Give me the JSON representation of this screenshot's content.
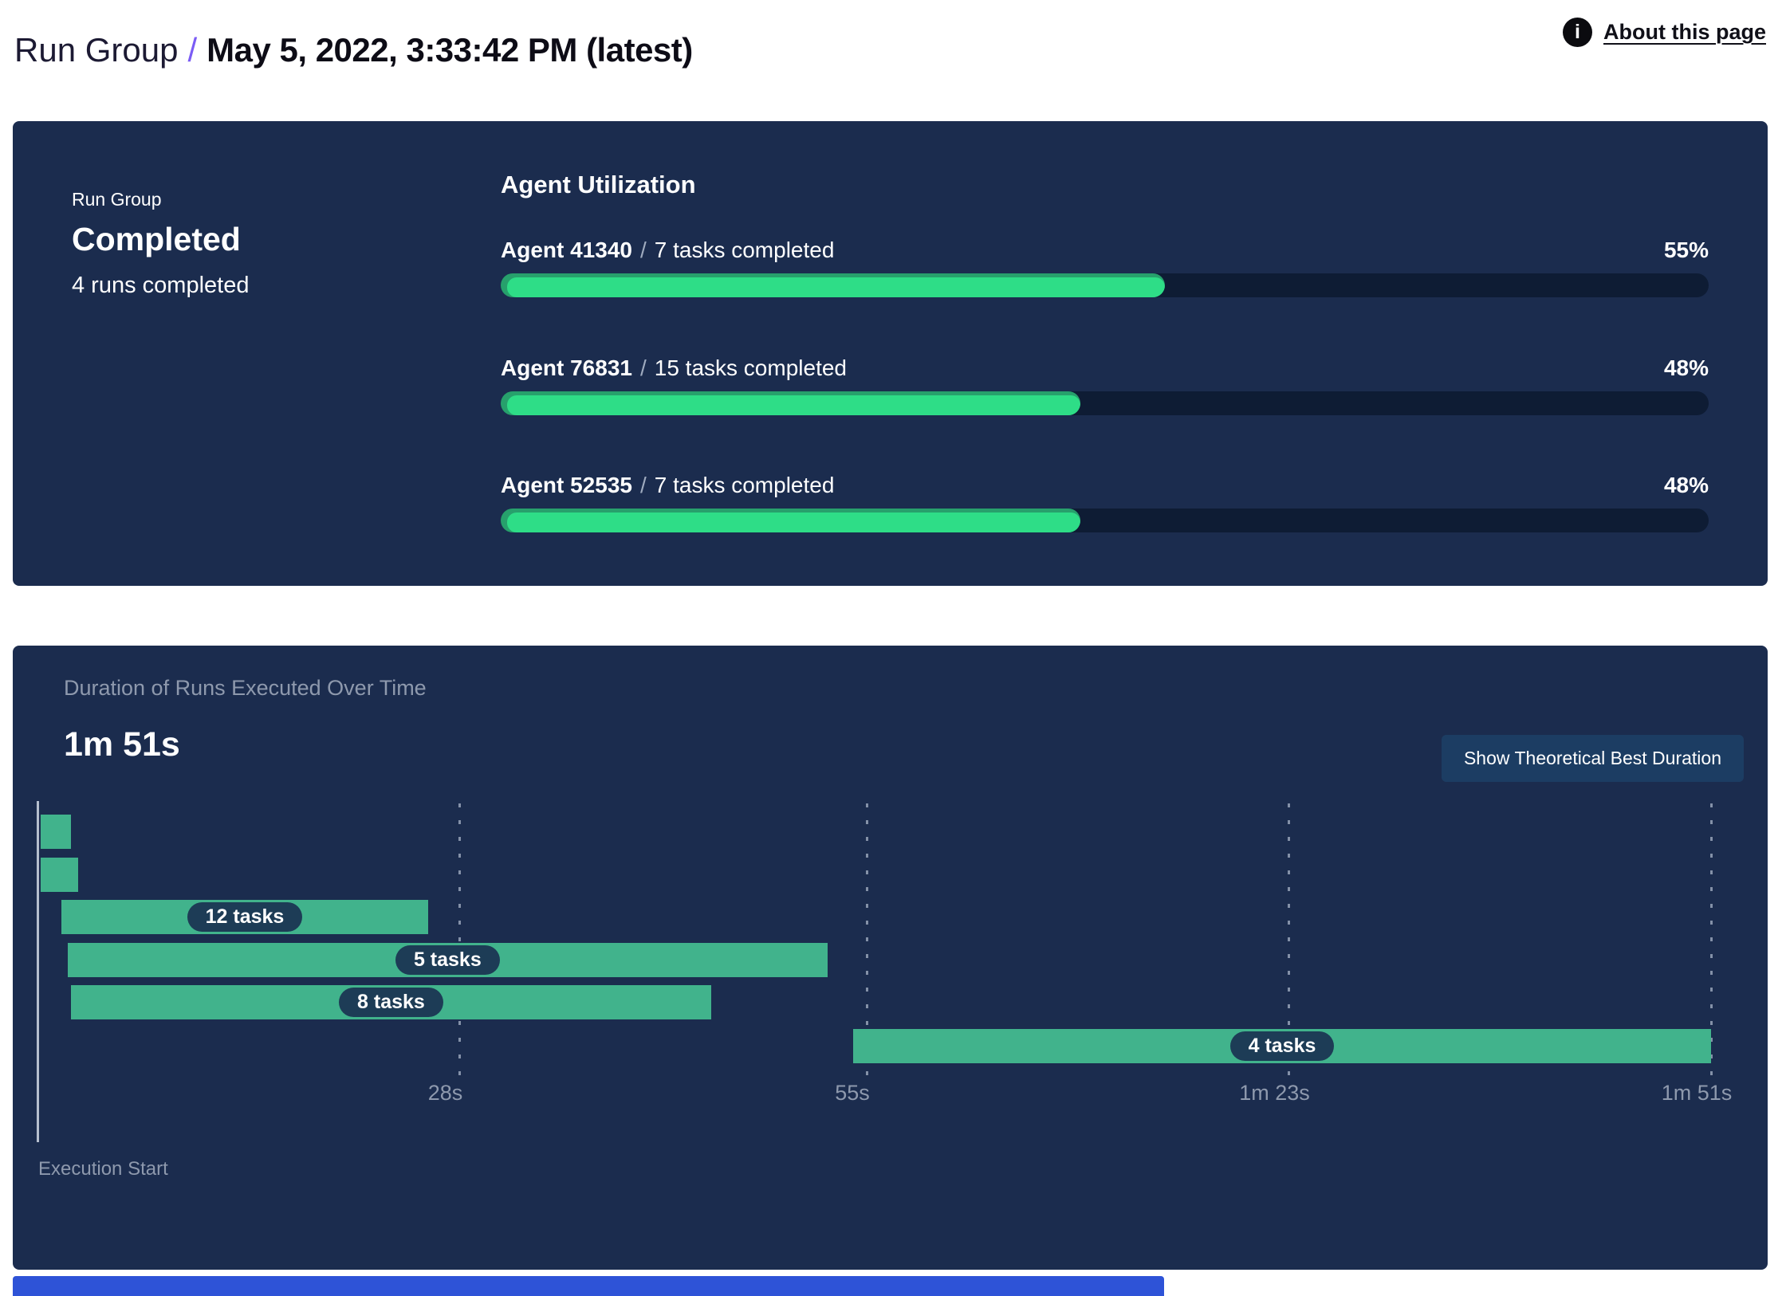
{
  "header": {
    "breadcrumb_root": "Run Group",
    "breadcrumb_separator": "/",
    "title": "May 5, 2022, 3:33:42 PM (latest)",
    "about_link": "About this page",
    "info_icon": "info-icon"
  },
  "status_card": {
    "label": "Run Group",
    "status": "Completed",
    "summary": "4 runs completed"
  },
  "agent_utilization": {
    "title": "Agent Utilization",
    "separator": "/",
    "rows": [
      {
        "agent": "Agent 41340",
        "tasks": "7 tasks completed",
        "percent": 55,
        "percent_label": "55%"
      },
      {
        "agent": "Agent 76831",
        "tasks": "15 tasks completed",
        "percent": 48,
        "percent_label": "48%"
      },
      {
        "agent": "Agent 52535",
        "tasks": "7 tasks completed",
        "percent": 48,
        "percent_label": "48%"
      }
    ]
  },
  "duration_panel": {
    "title": "Duration of Runs Executed Over Time",
    "total_duration": "1m 51s",
    "button_label": "Show Theoretical Best Duration",
    "axis_caption": "Execution Start"
  },
  "chart_data": {
    "type": "gantt",
    "title": "Duration of Runs Executed Over Time",
    "xlabel": "Execution Start",
    "total_duration_s": 111,
    "x_ticks": [
      {
        "t_s": 28,
        "label": "28s"
      },
      {
        "t_s": 55,
        "label": "55s"
      },
      {
        "t_s": 83,
        "label": "1m 23s"
      },
      {
        "t_s": 111,
        "label": "1m 51s"
      }
    ],
    "bars": [
      {
        "row": 0,
        "start_s": 0.2,
        "end_s": 2.2,
        "label": ""
      },
      {
        "row": 1,
        "start_s": 0.2,
        "end_s": 2.7,
        "label": ""
      },
      {
        "row": 2,
        "start_s": 1.6,
        "end_s": 25.9,
        "label": "12 tasks"
      },
      {
        "row": 3,
        "start_s": 2.0,
        "end_s": 52.4,
        "label": "5 tasks"
      },
      {
        "row": 4,
        "start_s": 2.2,
        "end_s": 44.7,
        "label": "8 tasks"
      },
      {
        "row": 5,
        "start_s": 54.1,
        "end_s": 111.0,
        "label": "4 tasks"
      }
    ],
    "grid": "dashed-vertical",
    "legend": "none"
  },
  "colors": {
    "panel_navy": "#1b2c4e",
    "accent_purple": "#7b5cf5",
    "progress_green": "#2edd87",
    "progress_green_edge": "#27a06c",
    "progress_track": "#0e1c34",
    "gantt_green": "#41b38c",
    "pill_navy": "#1d3c56",
    "button_navy": "#1c3d63",
    "muted_text": "#8e99ad",
    "footer_blue": "#2e53d7"
  }
}
